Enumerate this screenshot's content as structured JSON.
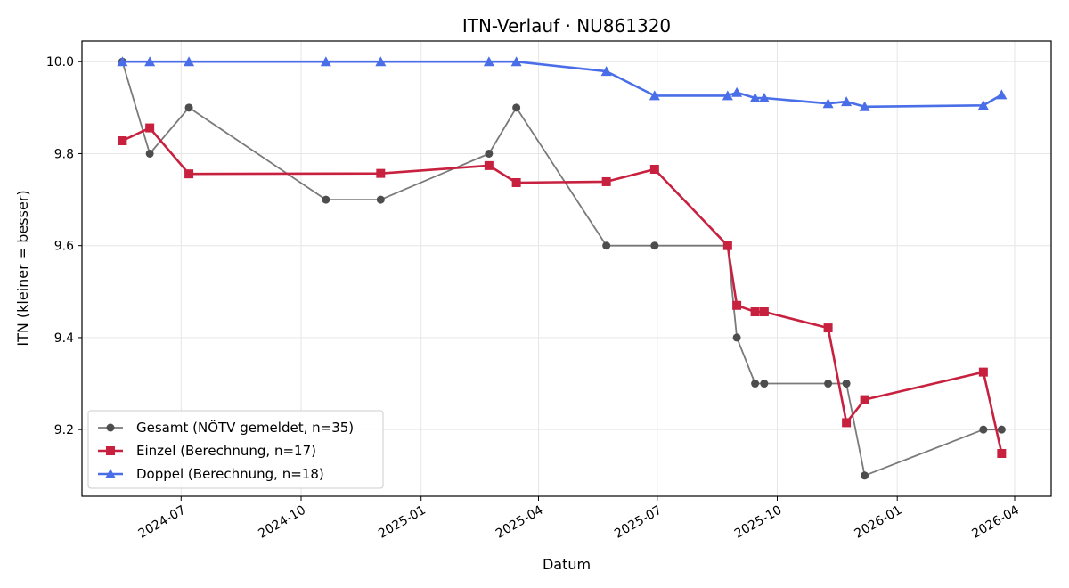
{
  "chart_data": {
    "type": "line",
    "title": "ITN-Verlauf · NU861320",
    "xlabel": "Datum",
    "ylabel": "ITN  (kleiner = besser)",
    "x_ticks": [
      "2024-07",
      "2024-10",
      "2025-01",
      "2025-04",
      "2025-07",
      "2025-10",
      "2026-01",
      "2026-04"
    ],
    "y_ticks": [
      "9.2",
      "9.4",
      "9.6",
      "9.8",
      "10.0"
    ],
    "ylim": [
      9.055,
      10.045
    ],
    "xlim": [
      "2024-04-16",
      "2026-04-29"
    ],
    "grid": true,
    "legend_position": "lower-left",
    "series": [
      {
        "name": "Gesamt (NÖTV gemeldet, n=35)",
        "color": "#4d4d4d",
        "marker": "circle",
        "points": [
          [
            "2024-05-17",
            10.0
          ],
          [
            "2024-06-07",
            9.8
          ],
          [
            "2024-07-07",
            9.9
          ],
          [
            "2024-10-20",
            9.7
          ],
          [
            "2024-12-01",
            9.7
          ],
          [
            "2025-02-22",
            9.8
          ],
          [
            "2025-03-15",
            9.9
          ],
          [
            "2025-05-23",
            9.6
          ],
          [
            "2025-06-29",
            9.6
          ],
          [
            "2025-08-24",
            9.6
          ],
          [
            "2025-08-31",
            9.4
          ],
          [
            "2025-09-14",
            9.3
          ],
          [
            "2025-09-21",
            9.3
          ],
          [
            "2025-11-09",
            9.3
          ],
          [
            "2025-11-23",
            9.3
          ],
          [
            "2025-12-07",
            9.1
          ],
          [
            "2026-03-08",
            9.2
          ],
          [
            "2026-03-22",
            9.2
          ]
        ]
      },
      {
        "name": "Einzel (Berechnung, n=17)",
        "color": "#c8213f",
        "marker": "square",
        "points": [
          [
            "2024-05-17",
            9.828
          ],
          [
            "2024-06-07",
            9.856
          ],
          [
            "2024-07-07",
            9.756
          ],
          [
            "2024-12-01",
            9.757
          ],
          [
            "2025-02-22",
            9.774
          ],
          [
            "2025-03-15",
            9.737
          ],
          [
            "2025-05-23",
            9.739
          ],
          [
            "2025-06-29",
            9.766
          ],
          [
            "2025-08-24",
            9.6
          ],
          [
            "2025-08-31",
            9.47
          ],
          [
            "2025-09-14",
            9.456
          ],
          [
            "2025-09-21",
            9.456
          ],
          [
            "2025-11-09",
            9.421
          ],
          [
            "2025-11-23",
            9.215
          ],
          [
            "2025-12-07",
            9.265
          ],
          [
            "2026-03-08",
            9.325
          ],
          [
            "2026-03-22",
            9.148
          ]
        ]
      },
      {
        "name": "Doppel (Berechnung, n=18)",
        "color": "#4a6ee8",
        "marker": "triangle",
        "points": [
          [
            "2024-05-17",
            10.0
          ],
          [
            "2024-06-07",
            10.0
          ],
          [
            "2024-07-07",
            10.0
          ],
          [
            "2024-10-20",
            10.0
          ],
          [
            "2024-12-01",
            10.0
          ],
          [
            "2025-02-22",
            10.0
          ],
          [
            "2025-03-15",
            10.0
          ],
          [
            "2025-05-23",
            9.979
          ],
          [
            "2025-06-29",
            9.926
          ],
          [
            "2025-08-24",
            9.926
          ],
          [
            "2025-08-31",
            9.933
          ],
          [
            "2025-09-14",
            9.921
          ],
          [
            "2025-09-21",
            9.921
          ],
          [
            "2025-11-09",
            9.909
          ],
          [
            "2025-11-23",
            9.913
          ],
          [
            "2025-12-07",
            9.902
          ],
          [
            "2026-03-08",
            9.905
          ],
          [
            "2026-03-22",
            9.928
          ]
        ]
      }
    ]
  }
}
